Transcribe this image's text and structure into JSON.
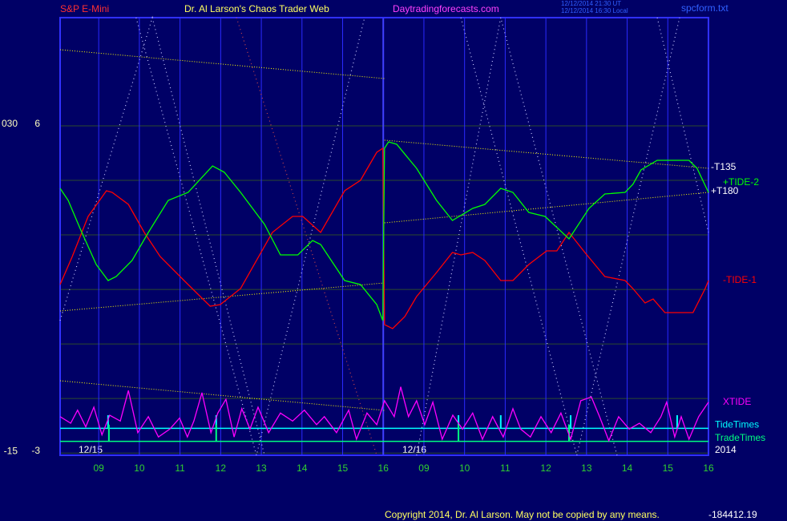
{
  "chart_data": {
    "type": "line",
    "title": "S&P E-Mini",
    "subtitle": "Dr. Al Larson's Chaos Trader Web",
    "site": "Daytradingforecasts.com",
    "file": "spcform.txt",
    "timestamps": [
      "12/12/2014 21:30 UT",
      "12/12/2014 16:30 Local"
    ],
    "copyright": "Copyright 2014, Dr. Al Larson. May not be copied by any means.",
    "readout": "-184412.19",
    "dates": [
      "12/15",
      "12/16",
      "2014"
    ],
    "xlim": [
      0.05,
      16
    ],
    "xticks": [
      {
        "value": 1,
        "label": "09"
      },
      {
        "value": 2,
        "label": "10"
      },
      {
        "value": 3,
        "label": "11"
      },
      {
        "value": 4,
        "label": "12"
      },
      {
        "value": 5,
        "label": "13"
      },
      {
        "value": 6,
        "label": "14"
      },
      {
        "value": 7,
        "label": "15"
      },
      {
        "value": 8,
        "label": "16"
      },
      {
        "value": 9,
        "label": "09"
      },
      {
        "value": 10,
        "label": "10"
      },
      {
        "value": 11,
        "label": "11"
      },
      {
        "value": 12,
        "label": "12"
      },
      {
        "value": 13,
        "label": "13"
      },
      {
        "value": 14,
        "label": "14"
      },
      {
        "value": 15,
        "label": "15"
      },
      {
        "value": 16,
        "label": "16"
      }
    ],
    "ylim": [
      -15.31,
      44.88
    ],
    "yticks": [
      {
        "value": 30,
        "label": "030"
      },
      -15
    ],
    "y2lim": [
      -3.07,
      8.98
    ],
    "y2ticks": [
      6,
      -3
    ],
    "ygrid": [
      22.5,
      15,
      7.5,
      0,
      -7.5
    ],
    "grid": true,
    "day_break": 8,
    "series": [
      {
        "name": "-TIDE-1",
        "color": "#ff0000",
        "x": [
          0.05,
          0.35,
          0.74,
          1.19,
          1.33,
          1.73,
          2.12,
          2.51,
          3.1,
          3.74,
          3.99,
          4.49,
          5.27,
          5.77,
          6.02,
          6.46,
          7.05,
          7.44,
          7.84,
          7.99,
          8.03,
          8.23,
          8.53,
          8.82,
          9.31,
          9.7,
          9.91,
          10.2,
          10.5,
          10.89,
          11.19,
          11.58,
          12.02,
          12.27,
          12.57,
          12.96,
          13.45,
          13.95,
          14.14,
          14.44,
          14.64,
          14.93,
          15.62,
          15.92,
          16.0
        ],
        "values": [
          8.17,
          12.03,
          17.54,
          21.07,
          20.85,
          19.2,
          15.34,
          12.03,
          8.72,
          5.19,
          5.41,
          7.62,
          15.34,
          17.54,
          17.54,
          15.34,
          21.07,
          22.5,
          26.36,
          26.91,
          2.66,
          2.11,
          3.76,
          6.52,
          9.82,
          12.58,
          12.25,
          12.58,
          11.48,
          8.72,
          8.72,
          10.93,
          12.8,
          12.8,
          15.34,
          12.58,
          9.27,
          8.72,
          7.62,
          5.63,
          6.18,
          4.31,
          4.31,
          7.62,
          8.72
        ]
      },
      {
        "name": "+TIDE-2",
        "color": "#00ff00",
        "x": [
          0.05,
          0.25,
          0.54,
          0.94,
          1.23,
          1.43,
          1.82,
          2.22,
          2.71,
          3.2,
          3.8,
          4.09,
          4.49,
          5.08,
          5.47,
          5.9,
          6.26,
          6.46,
          7.05,
          7.44,
          7.84,
          7.99,
          8.03,
          8.13,
          8.33,
          8.82,
          9.31,
          9.7,
          10.2,
          10.5,
          10.89,
          11.19,
          11.58,
          11.98,
          12.57,
          13.06,
          13.45,
          13.95,
          14.14,
          14.34,
          14.74,
          15.52,
          15.72,
          16.0
        ],
        "values": [
          21.4,
          19.75,
          15.89,
          10.93,
          8.72,
          9.27,
          11.48,
          15.34,
          19.75,
          20.85,
          24.49,
          23.61,
          20.85,
          16.44,
          12.25,
          12.25,
          14.23,
          13.68,
          8.72,
          8.17,
          5.41,
          3.21,
          26.91,
          27.79,
          27.46,
          24.16,
          19.75,
          16.99,
          18.64,
          19.2,
          21.4,
          20.85,
          18.09,
          17.54,
          14.45,
          18.64,
          20.63,
          20.85,
          21.95,
          23.94,
          25.26,
          25.26,
          24.16,
          20.85
        ]
      },
      {
        "name": "XTIDE",
        "color": "#ff00ff",
        "x": [
          0.05,
          0.31,
          0.48,
          0.68,
          0.88,
          1.08,
          1.27,
          1.53,
          1.73,
          1.96,
          2.22,
          2.47,
          2.75,
          2.99,
          3.18,
          3.34,
          3.54,
          3.76,
          3.93,
          4.13,
          4.33,
          4.52,
          4.72,
          4.92,
          5.18,
          5.47,
          5.77,
          6.06,
          6.36,
          6.55,
          6.85,
          7.15,
          7.34,
          7.6,
          7.84,
          8.03,
          8.27,
          8.43,
          8.62,
          8.82,
          9.02,
          9.22,
          9.45,
          9.71,
          9.95,
          10.2,
          10.44,
          10.69,
          10.95,
          11.19,
          11.38,
          11.62,
          11.88,
          12.13,
          12.37,
          12.61,
          12.86,
          13.12,
          13.32,
          13.55,
          13.79,
          14.05,
          14.3,
          14.58,
          14.83,
          14.97,
          15.17,
          15.33,
          15.52,
          15.76,
          16.0
        ],
        "values": [
          -10.0,
          -10.9,
          -9.1,
          -11.4,
          -8.7,
          -12.5,
          -9.8,
          -10.6,
          -6.4,
          -12.2,
          -10.0,
          -12.8,
          -11.7,
          -10.2,
          -12.8,
          -10.6,
          -6.7,
          -12.2,
          -9.5,
          -7.6,
          -12.8,
          -8.9,
          -11.7,
          -8.7,
          -12.2,
          -9.5,
          -10.6,
          -9.1,
          -11.1,
          -10.0,
          -12.2,
          -9.1,
          -13.1,
          -9.5,
          -11.1,
          -7.8,
          -10.0,
          -5.9,
          -10.0,
          -7.8,
          -11.1,
          -8.0,
          -13.1,
          -9.8,
          -11.7,
          -9.5,
          -13.1,
          -10.0,
          -12.8,
          -8.9,
          -11.7,
          -12.8,
          -10.0,
          -12.2,
          -9.5,
          -13.1,
          -7.8,
          -7.3,
          -10.0,
          -13.3,
          -10.0,
          -11.7,
          -10.9,
          -12.2,
          -10.0,
          -8.0,
          -12.8,
          -10.0,
          -13.1,
          -10.0,
          -8.0
        ]
      }
    ],
    "trendlines": [
      {
        "name": "-T135",
        "color": "#ffff00",
        "x": [
          8.03,
          16.0
        ],
        "values": [
          28.02,
          24.16
        ]
      },
      {
        "name": "+T180",
        "color": "#ffff00",
        "x": [
          8.03,
          16.0
        ],
        "values": [
          16.66,
          20.85
        ]
      },
      {
        "color": "#ffff00",
        "x": [
          0.05,
          8.03
        ],
        "values": [
          40.47,
          36.5
        ]
      },
      {
        "color": "#ffff00",
        "x": [
          0.05,
          8.03
        ],
        "values": [
          4.53,
          8.39
        ]
      },
      {
        "color": "#ffff00",
        "x": [
          0.05,
          8.03
        ],
        "values": [
          -5.06,
          -9.14
        ]
      }
    ],
    "cycles": [
      {
        "color": "#c8c8ff",
        "x": [
          0.05,
          2.32,
          5.08
        ],
        "values": [
          3.21,
          44.88,
          -15.31
        ]
      },
      {
        "color": "#c8c8ff",
        "x": [
          1.92,
          4.88,
          7.54
        ],
        "values": [
          44.88,
          -15.31,
          44.88
        ]
      },
      {
        "color": "#c8c8ff",
        "x": [
          8.82,
          10.89,
          13.75
        ],
        "values": [
          -15.31,
          44.88,
          -15.31
        ]
      },
      {
        "color": "#c8c8ff",
        "x": [
          9.91,
          12.76,
          15.29
        ],
        "values": [
          44.88,
          -15.31,
          44.88
        ]
      },
      {
        "color": "#c8c8ff",
        "x": [
          14.74,
          16.0
        ],
        "values": [
          44.88,
          15.34
        ]
      },
      {
        "color": "#d04848",
        "x": [
          4.39,
          7.84
        ],
        "values": [
          44.88,
          -15.31
        ]
      }
    ],
    "timing": [
      {
        "name": "TideTimes",
        "color": "#00ffff",
        "level": -11.6,
        "spike": -9.8,
        "events": [
          1.23,
          3.89,
          9.85,
          10.89,
          12.61,
          15.23
        ]
      },
      {
        "name": "TradeTimes",
        "color": "#00ff80",
        "level": -13.4,
        "spike": -11.1,
        "events": [
          1.25,
          3.89,
          9.85,
          12.57
        ]
      }
    ]
  }
}
